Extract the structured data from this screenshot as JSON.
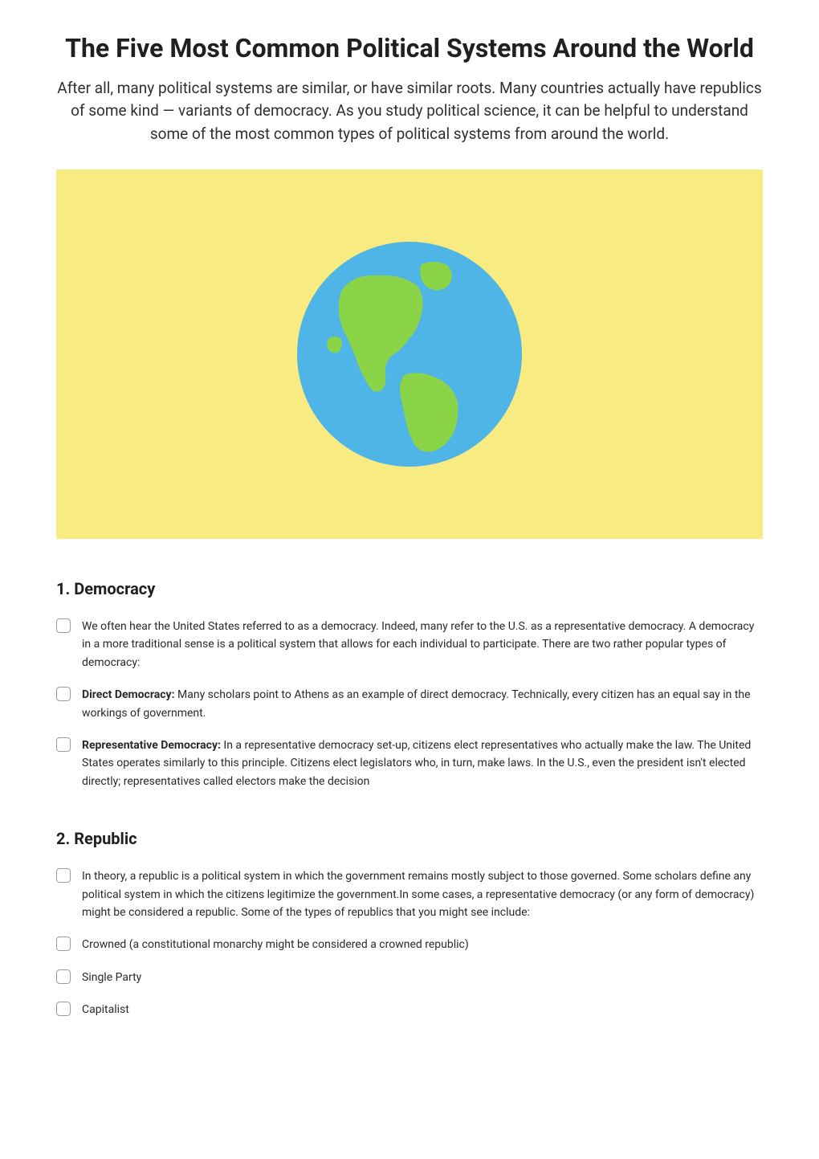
{
  "title": "The Five Most Common Political Systems Around the World",
  "intro": "After all, many political systems are similar, or have similar roots. Many countries actually have republics of some kind — variants of democracy. As you study political science, it can be helpful to understand some of the most common types of political systems from around the world.",
  "hero": {
    "background_color": "#f8eb82",
    "globe": {
      "ocean_color": "#4fb5e6",
      "land_color": "#8bd448",
      "diameter": 280
    }
  },
  "sections": [
    {
      "heading": "1. Democracy",
      "items": [
        {
          "bold_prefix": "",
          "text": "We often hear the United States referred to as a democracy. Indeed, many refer to the U.S. as a representative democracy. A democracy in a more traditional sense is a political system that allows for each individual to participate. There are two rather popular types of democracy:"
        },
        {
          "bold_prefix": "Direct Democracy: ",
          "text": "Many scholars point to Athens as an example of direct democracy. Technically, every citizen has an equal say in the workings of government."
        },
        {
          "bold_prefix": "Representative Democracy: ",
          "text": "In a representative democracy set-up, citizens elect representatives who actually make the law. The United States operates similarly to this principle. Citizens elect legislators who, in turn, make laws. In the U.S., even the president isn't elected directly; representatives called electors make the decision"
        }
      ]
    },
    {
      "heading": "2. Republic",
      "items": [
        {
          "bold_prefix": "",
          "text": "In theory, a republic is a political system in which the government remains mostly subject to those governed. Some scholars define any political system in which the citizens legitimize the government.In some cases, a representative democracy (or any form of democracy) might be considered a republic. Some of the types of republics that you might see include:"
        },
        {
          "bold_prefix": "",
          "text": "Crowned (a constitutional monarchy might be considered a crowned republic)"
        },
        {
          "bold_prefix": "",
          "text": "Single Party"
        },
        {
          "bold_prefix": "",
          "text": "Capitalist"
        }
      ]
    }
  ],
  "styles": {
    "title_fontsize": 32,
    "intro_fontsize": 19,
    "heading_fontsize": 20,
    "body_fontsize": 14,
    "checkbox_border_color": "#9e9e9e",
    "text_color": "#202020",
    "background_color": "#ffffff"
  }
}
